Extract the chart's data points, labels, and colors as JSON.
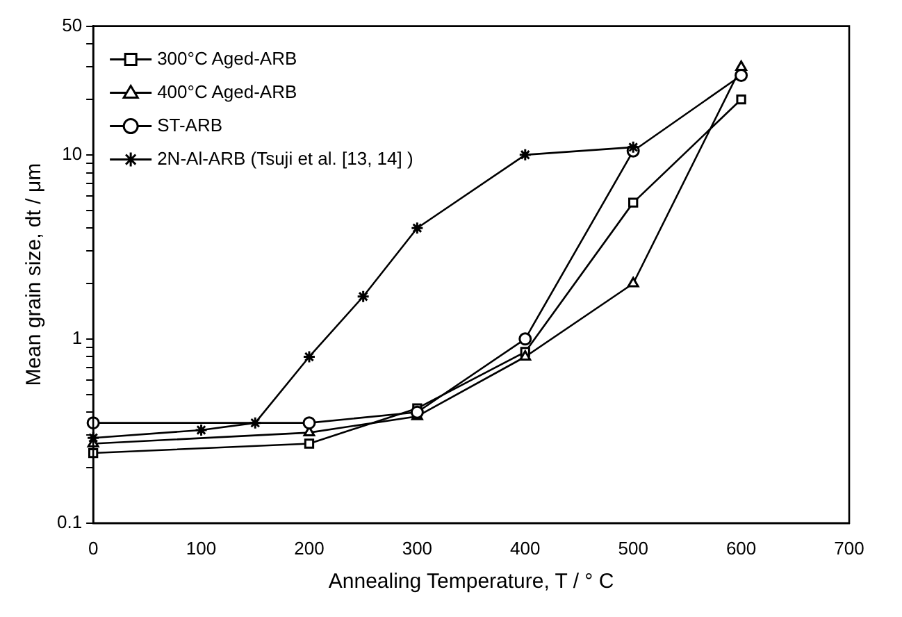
{
  "chart_data": {
    "type": "line",
    "xlabel": "Annealing Temperature, T / ° C",
    "ylabel": "Mean grain size, dt / μm",
    "log": "y",
    "grid": false,
    "legend": "top left",
    "xlim": [
      0,
      700
    ],
    "xticks": [
      0,
      100,
      200,
      300,
      400,
      500,
      600,
      700
    ],
    "ylim": [
      0.1,
      50
    ],
    "yticks": [
      0.1,
      {
        "value": 0.2,
        "label": null
      },
      {
        "value": 0.3,
        "label": null
      },
      {
        "value": 0.4,
        "label": null
      },
      {
        "value": 0.5,
        "label": null
      },
      {
        "value": 0.6,
        "label": null
      },
      {
        "value": 0.7,
        "label": null
      },
      {
        "value": 0.8,
        "label": null
      },
      {
        "value": 0.9,
        "label": null
      },
      1,
      {
        "value": 2,
        "label": null
      },
      {
        "value": 3,
        "label": null
      },
      {
        "value": 4,
        "label": null
      },
      {
        "value": 5,
        "label": null
      },
      {
        "value": 6,
        "label": null
      },
      {
        "value": 7,
        "label": null
      },
      {
        "value": 8,
        "label": null
      },
      {
        "value": 9,
        "label": null
      },
      10,
      {
        "value": 20,
        "label": null
      },
      {
        "value": 30,
        "label": null
      },
      {
        "value": 40,
        "label": null
      },
      50
    ],
    "series": [
      {
        "name": "300°C Aged-ARB",
        "color": "#000000",
        "marker": "square",
        "x": [
          0,
          200,
          300,
          400,
          500,
          600
        ],
        "values": [
          0.24,
          0.27,
          0.42,
          0.85,
          5.5,
          20
        ]
      },
      {
        "name": "400°C Aged-ARB",
        "color": "#000000",
        "marker": "triangle",
        "x": [
          0,
          200,
          300,
          400,
          500,
          600
        ],
        "values": [
          0.27,
          0.31,
          0.38,
          0.8,
          2.0,
          30
        ]
      },
      {
        "name": "ST-ARB",
        "color": "#000000",
        "marker": "circle",
        "x": [
          0,
          200,
          300,
          400,
          500,
          600
        ],
        "values": [
          0.35,
          0.35,
          0.4,
          1.0,
          10.5,
          27
        ]
      },
      {
        "name": "2N-Al-ARB (Tsuji et al. [13, 14] )",
        "color": "#000000",
        "marker": "cross",
        "x": [
          0,
          100,
          150,
          200,
          250,
          300,
          400,
          500
        ],
        "values": [
          0.29,
          0.32,
          0.35,
          0.8,
          1.7,
          4.0,
          10,
          11
        ]
      }
    ]
  }
}
